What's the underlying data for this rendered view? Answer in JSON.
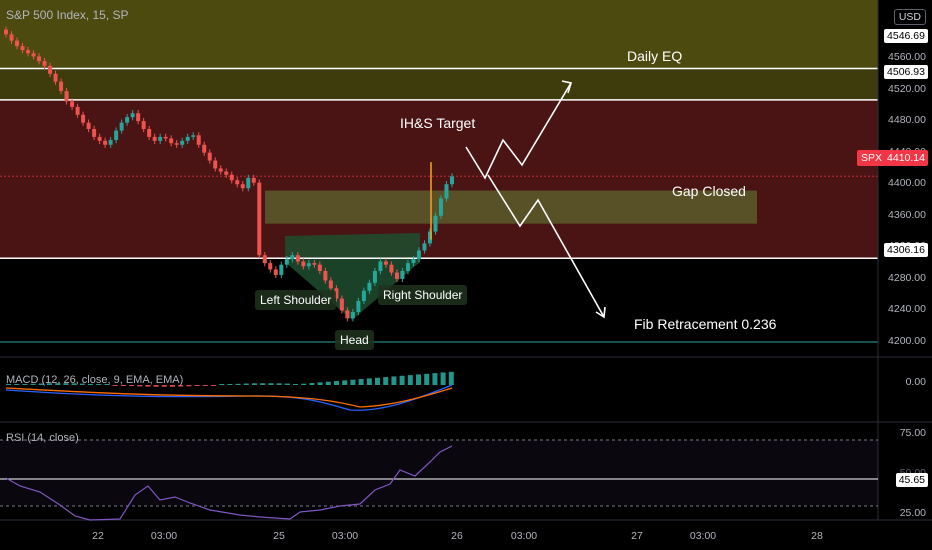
{
  "header": {
    "symbol_title": "S&P 500 Index, 15, SP",
    "currency": "USD"
  },
  "price_axis": {
    "ticks": [
      "4560.00",
      "4520.00",
      "4480.00",
      "4440.00",
      "4400.00",
      "4360.00",
      "4320.00",
      "4280.00",
      "4240.00",
      "4200.00"
    ],
    "badges": [
      "4546.69",
      "4506.93",
      "4306.16"
    ],
    "current_price": "4410.14",
    "current_tag": "SPX"
  },
  "time_axis": {
    "labels": [
      "22",
      "03:00",
      "25",
      "03:00",
      "26",
      "03:00",
      "27",
      "03:00",
      "28"
    ]
  },
  "annotations": {
    "daily_eq": "Daily EQ",
    "ihs_target": "IH&S Target",
    "gap_closed": "Gap Closed",
    "left_shoulder": "Left Shoulder",
    "head": "Head",
    "right_shoulder": "Right Shoulder",
    "fib": "Fib Retracement 0.236"
  },
  "macd": {
    "label": "MACD (12, 26, close, 9, EMA, EMA)",
    "axis_label": "0.00"
  },
  "rsi": {
    "label": "RSI (14, close)",
    "ticks": [
      "75.00",
      "25.00"
    ],
    "value": "45.65",
    "level_50": "50.00"
  },
  "colors": {
    "up": "#26a69a",
    "down": "#ef5350",
    "zone_top": "#4d4a10",
    "zone_mid": "#4a1414",
    "gap_zone": "#5a5a2a",
    "ihs_zone": "#1f4d2f",
    "current": "#f23645",
    "rsi_line": "#7e57c2"
  },
  "chart_data": {
    "type": "candlestick",
    "series_name": "S&P 500 Index",
    "interval": "15",
    "x": [
      "22",
      "03:00",
      "25",
      "03:00",
      "26"
    ],
    "levels": [
      4546.69,
      4506.93,
      4306.16,
      4200.0
    ],
    "current": 4410.14,
    "zones": [
      {
        "label": "Daily EQ",
        "from": 4506.93,
        "to": 4546.69
      },
      {
        "label": "Gap Closed",
        "from": 4350,
        "to": 4392
      }
    ],
    "candles_close": [
      4590,
      4582,
      4575,
      4570,
      4566,
      4562,
      4556,
      4550,
      4540,
      4530,
      4518,
      4505,
      4498,
      4488,
      4478,
      4470,
      4460,
      4455,
      4450,
      4456,
      4468,
      4478,
      4485,
      4490,
      4480,
      4470,
      4460,
      4455,
      4460,
      4458,
      4452,
      4450,
      4455,
      4460,
      4462,
      4450,
      4440,
      4430,
      4420,
      4416,
      4412,
      4405,
      4400,
      4395,
      4408,
      4402,
      4310,
      4300,
      4292,
      4285,
      4298,
      4305,
      4310,
      4302,
      4296,
      4300,
      4298,
      4290,
      4278,
      4268,
      4255,
      4240,
      4230,
      4238,
      4252,
      4265,
      4275,
      4290,
      4302,
      4298,
      4288,
      4280,
      4290,
      4300,
      4305,
      4316,
      4325,
      4340,
      4360,
      4382,
      4400,
      4410
    ]
  }
}
